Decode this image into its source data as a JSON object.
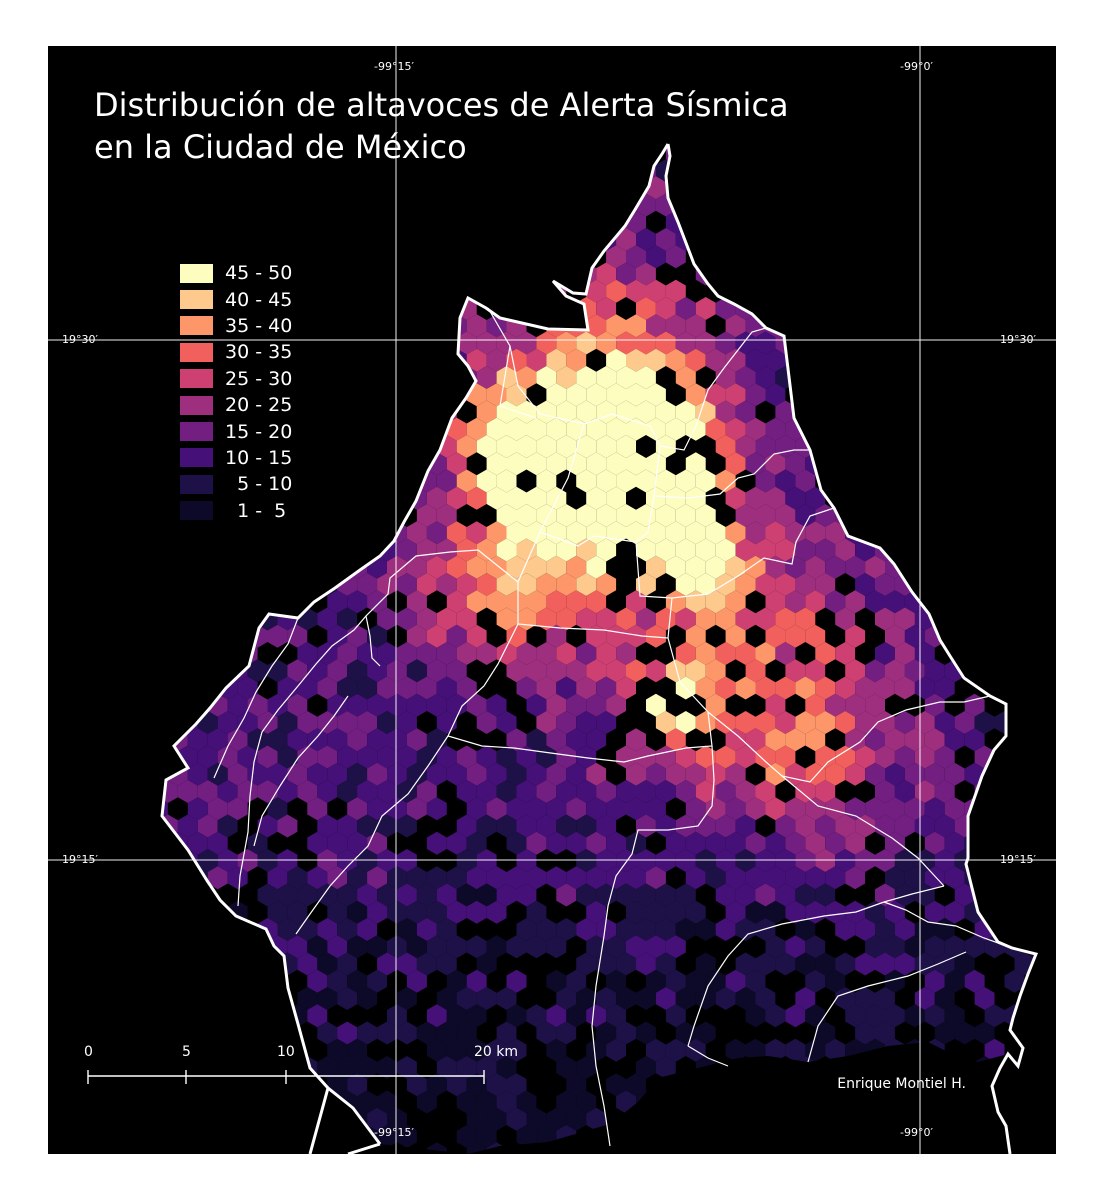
{
  "map": {
    "title_line1": "Distribución de altavoces de Alerta Sísmica",
    "title_line2": "en la Ciudad de México",
    "credit": "Enrique Montiel H."
  },
  "graticule": {
    "lon_labels": [
      "-99°15′",
      "-99°0′"
    ],
    "lat_labels": [
      "19°30′",
      "19°15′"
    ]
  },
  "legend": {
    "items": [
      {
        "label": "45 - 50",
        "color": "#fcfdbf"
      },
      {
        "label": "40 - 45",
        "color": "#fec98d"
      },
      {
        "label": "35 - 40",
        "color": "#fd9668"
      },
      {
        "label": "30 - 35",
        "color": "#f1605d"
      },
      {
        "label": "25 - 30",
        "color": "#cd4071"
      },
      {
        "label": "20 - 25",
        "color": "#9e2f7f"
      },
      {
        "label": "15 - 20",
        "color": "#721f81"
      },
      {
        "label": "10 - 15",
        "color": "#451077"
      },
      {
        "label": "  5 - 10",
        "color": "#1d1147"
      },
      {
        "label": "  1 -  5",
        "color": "#0d0a29"
      }
    ]
  },
  "scale_bar": {
    "labels": [
      "0",
      "5",
      "10",
      "20 km"
    ]
  }
}
